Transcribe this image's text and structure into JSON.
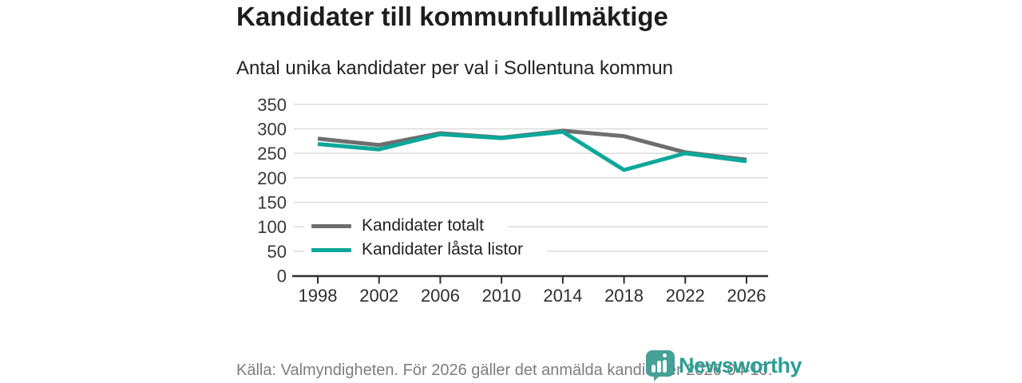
{
  "header": {
    "title": "Kandidater till kommunfullmäktige",
    "subtitle": "Antal unika kandidater per val i Sollentuna kommun"
  },
  "footer": {
    "source": "Källa: Valmyndigheten. För 2026 gäller det anmälda kandidater 2026-04-10.",
    "brand": "Newsworthy"
  },
  "colors": {
    "series_total": "#6e6e6e",
    "series_locked": "#0ba79a",
    "grid": "#dcdcdc",
    "axis": "#2e2e2e",
    "tick_label": "#383838",
    "logo_teal": "#2b9f94",
    "logo_bubble": "#45a096",
    "footer_text": "#7d7d7d"
  },
  "chart_data": {
    "type": "line",
    "title": "Kandidater till kommunfullmäktige",
    "subtitle": "Antal unika kandidater per val i Sollentuna kommun",
    "x": [
      1998,
      2002,
      2006,
      2010,
      2014,
      2018,
      2022,
      2026
    ],
    "series": [
      {
        "name": "Kandidater totalt",
        "color": "#6e6e6e",
        "values": [
          280,
          267,
          291,
          282,
          296,
          285,
          252,
          237
        ]
      },
      {
        "name": "Kandidater låsta listor",
        "color": "#0ba79a",
        "values": [
          269,
          258,
          289,
          281,
          294,
          216,
          250,
          234
        ]
      }
    ],
    "ylim": [
      0,
      350
    ],
    "ytick_step": 50,
    "grid": true,
    "legend_position": "inside-bottom-left",
    "xlabel": "",
    "ylabel": ""
  }
}
